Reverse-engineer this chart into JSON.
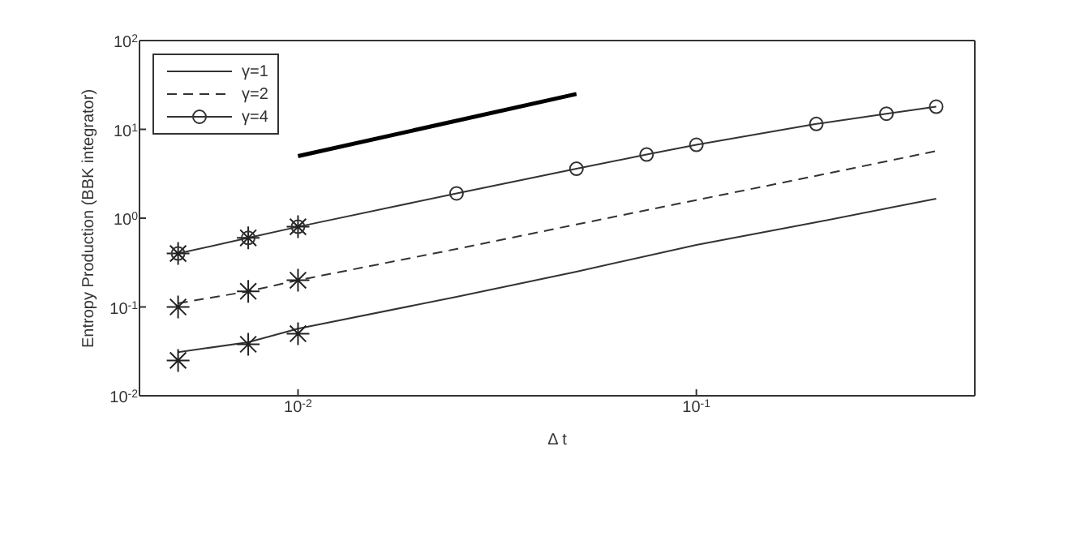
{
  "chart_data": {
    "type": "line",
    "xlabel": "Δ t",
    "ylabel": "Entropy Production (BBK integrator)",
    "log": "xy",
    "xlim": [
      0.004,
      0.5
    ],
    "ylim": [
      0.01,
      100
    ],
    "xticks": [
      {
        "value": 0.01,
        "label": "10$^{-2}$"
      },
      {
        "value": 0.1,
        "label": "10$^{-1}$"
      }
    ],
    "yticks": [
      {
        "value": 0.01,
        "label": "10$^{-2}$"
      },
      {
        "value": 0.1,
        "label": "10$^{-1}$"
      },
      {
        "value": 1,
        "label": "10$^{0}$"
      },
      {
        "value": 10,
        "label": "10$^{1}$"
      },
      {
        "value": 100,
        "label": "10$^{2}$"
      }
    ],
    "grid": false,
    "legend": "top left",
    "series": [
      {
        "name": "γ=1",
        "color": "#333333",
        "line_style": "solid",
        "marker": "none",
        "x": [
          0.005,
          0.0075,
          0.01,
          0.025,
          0.05,
          0.1,
          0.2,
          0.4
        ],
        "values": [
          0.031,
          0.04,
          0.057,
          0.13,
          0.25,
          0.5,
          0.9,
          1.66
        ]
      },
      {
        "name": "γ=2",
        "color": "#333333",
        "line_style": "dashed",
        "marker": "none",
        "x": [
          0.005,
          0.0075,
          0.01,
          0.025,
          0.05,
          0.1,
          0.2,
          0.4
        ],
        "values": [
          0.11,
          0.15,
          0.2,
          0.45,
          0.85,
          1.6,
          3,
          5.7
        ]
      },
      {
        "name": "γ=4",
        "color": "#333333",
        "line_style": "solid",
        "marker": "circle",
        "x": [
          0.005,
          0.0075,
          0.01,
          0.025,
          0.05,
          0.075,
          0.1,
          0.2,
          0.3,
          0.4
        ],
        "values": [
          0.4,
          0.6,
          0.8,
          1.9,
          3.6,
          5.2,
          6.7,
          11.5,
          15,
          18
        ]
      },
      {
        "type": "scatter",
        "color": "#222222",
        "marker": "cross",
        "x": [
          0.005,
          0.0075,
          0.01,
          0.005,
          0.0075,
          0.01,
          0.005,
          0.0075,
          0.01
        ],
        "values": [
          0.4,
          0.6,
          0.8,
          0.1,
          0.15,
          0.2,
          0.025,
          0.038,
          0.05
        ]
      },
      {
        "color": "#000000",
        "line_style": "solid",
        "marker": "none",
        "x": [
          0.01,
          0.05
        ],
        "values": [
          5,
          25
        ]
      }
    ]
  }
}
